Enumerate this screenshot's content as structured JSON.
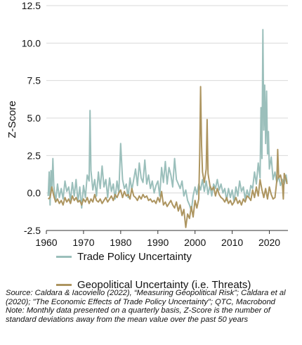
{
  "chart_data": {
    "type": "line",
    "title": "",
    "xlabel": "",
    "ylabel": "Z-Score",
    "xlim": [
      1960,
      2025
    ],
    "ylim": [
      -2.5,
      12.5
    ],
    "xticks": [
      "1960",
      "1970",
      "1980",
      "1990",
      "2000",
      "2010",
      "2020"
    ],
    "yticks": [
      "-2.5",
      "0.0",
      "2.5",
      "5.0",
      "7.5",
      "10.0",
      "12.5"
    ],
    "grid": "horizontal",
    "legend_position": "bottom",
    "series": [
      {
        "name": "Trade Policy Uncertainty",
        "color": "#9bbfbb",
        "points": [
          [
            1960.5,
            -0.2
          ],
          [
            1960.75,
            1.4
          ],
          [
            1961.0,
            -0.8
          ],
          [
            1961.25,
            1.5
          ],
          [
            1961.5,
            0.3
          ],
          [
            1961.75,
            2.3
          ],
          [
            1962.0,
            0.5
          ],
          [
            1962.5,
            -0.6
          ],
          [
            1963.0,
            0.6
          ],
          [
            1963.5,
            -0.3
          ],
          [
            1964.0,
            0.3
          ],
          [
            1964.5,
            -0.4
          ],
          [
            1965.0,
            0.8
          ],
          [
            1965.5,
            0.1
          ],
          [
            1966.0,
            0.4
          ],
          [
            1966.5,
            -0.5
          ],
          [
            1967.0,
            0.7
          ],
          [
            1967.5,
            -0.2
          ],
          [
            1968.0,
            0.9
          ],
          [
            1968.5,
            -0.6
          ],
          [
            1969.0,
            0.4
          ],
          [
            1969.5,
            -1.0
          ],
          [
            1970.0,
            0.5
          ],
          [
            1970.5,
            -0.3
          ],
          [
            1971.0,
            1.2
          ],
          [
            1971.5,
            0.8
          ],
          [
            1971.75,
            5.5
          ],
          [
            1972.0,
            1.5
          ],
          [
            1972.5,
            0.2
          ],
          [
            1973.0,
            0.9
          ],
          [
            1973.5,
            -0.2
          ],
          [
            1974.0,
            1.4
          ],
          [
            1974.5,
            0.3
          ],
          [
            1975.0,
            1.8
          ],
          [
            1975.5,
            0.4
          ],
          [
            1976.0,
            0.9
          ],
          [
            1976.5,
            -0.3
          ],
          [
            1977.0,
            1.0
          ],
          [
            1977.5,
            0.1
          ],
          [
            1978.0,
            0.6
          ],
          [
            1978.5,
            -0.4
          ],
          [
            1979.0,
            0.8
          ],
          [
            1979.5,
            0.0
          ],
          [
            1980.0,
            3.3
          ],
          [
            1980.5,
            0.9
          ],
          [
            1981.0,
            0.3
          ],
          [
            1981.5,
            0.6
          ],
          [
            1982.0,
            -0.3
          ],
          [
            1982.5,
            1.0
          ],
          [
            1983.0,
            0.2
          ],
          [
            1983.5,
            0.9
          ],
          [
            1984.0,
            1.6
          ],
          [
            1984.5,
            0.5
          ],
          [
            1985.0,
            2.0
          ],
          [
            1985.5,
            1.0
          ],
          [
            1986.0,
            0.7
          ],
          [
            1986.5,
            2.2
          ],
          [
            1987.0,
            0.6
          ],
          [
            1987.5,
            1.2
          ],
          [
            1988.0,
            0.3
          ],
          [
            1988.5,
            0.8
          ],
          [
            1989.0,
            0.0
          ],
          [
            1989.5,
            0.5
          ],
          [
            1990.0,
            0.8
          ],
          [
            1990.5,
            -0.2
          ],
          [
            1991.0,
            1.7
          ],
          [
            1991.5,
            0.7
          ],
          [
            1992.0,
            2.1
          ],
          [
            1992.5,
            0.6
          ],
          [
            1993.0,
            1.7
          ],
          [
            1993.5,
            1.2
          ],
          [
            1994.0,
            0.4
          ],
          [
            1994.5,
            2.3
          ],
          [
            1995.0,
            0.9
          ],
          [
            1995.5,
            0.6
          ],
          [
            1996.0,
            0.3
          ],
          [
            1996.5,
            0.8
          ],
          [
            1997.0,
            -0.2
          ],
          [
            1997.5,
            0.2
          ],
          [
            1998.0,
            -0.5
          ],
          [
            1998.5,
            -0.8
          ],
          [
            1999.0,
            -1.2
          ],
          [
            1999.5,
            -0.2
          ],
          [
            2000.0,
            0.4
          ],
          [
            2000.5,
            -0.1
          ],
          [
            2001.0,
            0.6
          ],
          [
            2001.5,
            0.2
          ],
          [
            2002.0,
            0.9
          ],
          [
            2002.5,
            0.1
          ],
          [
            2003.0,
            0.8
          ],
          [
            2003.5,
            -0.1
          ],
          [
            2004.0,
            0.5
          ],
          [
            2004.5,
            -0.2
          ],
          [
            2005.0,
            0.6
          ],
          [
            2005.5,
            0.3
          ],
          [
            2006.0,
            0.9
          ],
          [
            2006.5,
            0.2
          ],
          [
            2007.0,
            0.6
          ],
          [
            2007.5,
            0.0
          ],
          [
            2008.0,
            0.3
          ],
          [
            2008.5,
            -0.5
          ],
          [
            2009.0,
            0.3
          ],
          [
            2009.5,
            -0.3
          ],
          [
            2010.0,
            0.2
          ],
          [
            2010.5,
            -0.6
          ],
          [
            2011.0,
            0.4
          ],
          [
            2011.5,
            -0.2
          ],
          [
            2012.0,
            0.8
          ],
          [
            2012.5,
            0.1
          ],
          [
            2013.0,
            0.4
          ],
          [
            2013.5,
            -0.4
          ],
          [
            2014.0,
            0.2
          ],
          [
            2014.5,
            -0.3
          ],
          [
            2015.0,
            0.5
          ],
          [
            2015.5,
            0.3
          ],
          [
            2016.0,
            1.4
          ],
          [
            2016.5,
            0.6
          ],
          [
            2017.0,
            2.0
          ],
          [
            2017.5,
            1.0
          ],
          [
            2017.75,
            5.7
          ],
          [
            2018.0,
            2.3
          ],
          [
            2018.25,
            10.9
          ],
          [
            2018.5,
            4.2
          ],
          [
            2018.75,
            7.2
          ],
          [
            2019.0,
            3.3
          ],
          [
            2019.25,
            6.8
          ],
          [
            2019.5,
            2.6
          ],
          [
            2019.75,
            4.1
          ],
          [
            2020.0,
            1.6
          ],
          [
            2020.5,
            2.4
          ],
          [
            2021.0,
            0.9
          ],
          [
            2021.5,
            1.4
          ],
          [
            2022.0,
            0.7
          ],
          [
            2022.5,
            1.1
          ],
          [
            2023.0,
            0.5
          ],
          [
            2023.5,
            0.9
          ],
          [
            2024.0,
            0.6
          ],
          [
            2024.5,
            1.2
          ],
          [
            2024.75,
            0.7
          ]
        ]
      },
      {
        "name": "Geopolitical Uncertainty (i.e. Threats)",
        "color": "#ad9560",
        "points": [
          [
            1960.5,
            -0.4
          ],
          [
            1961.0,
            -0.3
          ],
          [
            1961.5,
            0.4
          ],
          [
            1962.0,
            -0.2
          ],
          [
            1962.5,
            -0.6
          ],
          [
            1963.0,
            -0.4
          ],
          [
            1963.5,
            -0.7
          ],
          [
            1964.0,
            -0.5
          ],
          [
            1964.5,
            -0.8
          ],
          [
            1965.0,
            -0.3
          ],
          [
            1965.5,
            -0.6
          ],
          [
            1966.0,
            -0.4
          ],
          [
            1966.5,
            -0.7
          ],
          [
            1967.0,
            -0.2
          ],
          [
            1967.5,
            -0.5
          ],
          [
            1968.0,
            -0.3
          ],
          [
            1968.5,
            -0.6
          ],
          [
            1969.0,
            -0.5
          ],
          [
            1969.5,
            -0.8
          ],
          [
            1970.0,
            -0.4
          ],
          [
            1970.5,
            -0.6
          ],
          [
            1971.0,
            -0.3
          ],
          [
            1971.5,
            -0.7
          ],
          [
            1972.0,
            -0.4
          ],
          [
            1972.5,
            -0.6
          ],
          [
            1973.0,
            -0.1
          ],
          [
            1973.5,
            -0.5
          ],
          [
            1974.0,
            -0.6
          ],
          [
            1974.5,
            -0.4
          ],
          [
            1975.0,
            -0.7
          ],
          [
            1975.5,
            -0.5
          ],
          [
            1976.0,
            -0.3
          ],
          [
            1976.5,
            -0.6
          ],
          [
            1977.0,
            -0.4
          ],
          [
            1977.5,
            -0.2
          ],
          [
            1978.0,
            -0.5
          ],
          [
            1978.5,
            -0.1
          ],
          [
            1979.0,
            -0.3
          ],
          [
            1979.5,
            0.0
          ],
          [
            1980.0,
            0.2
          ],
          [
            1980.5,
            -0.3
          ],
          [
            1981.0,
            0.1
          ],
          [
            1981.5,
            -0.2
          ],
          [
            1982.0,
            -0.1
          ],
          [
            1982.5,
            -0.4
          ],
          [
            1983.0,
            0.3
          ],
          [
            1983.5,
            -0.2
          ],
          [
            1984.0,
            -0.3
          ],
          [
            1984.5,
            -0.5
          ],
          [
            1985.0,
            -0.2
          ],
          [
            1985.5,
            -0.4
          ],
          [
            1986.0,
            -0.1
          ],
          [
            1986.5,
            -0.3
          ],
          [
            1987.0,
            -0.2
          ],
          [
            1987.5,
            -0.5
          ],
          [
            1988.0,
            -0.4
          ],
          [
            1988.5,
            -0.6
          ],
          [
            1989.0,
            -0.5
          ],
          [
            1989.5,
            -0.7
          ],
          [
            1990.0,
            -0.3
          ],
          [
            1990.5,
            -0.6
          ],
          [
            1991.0,
            0.1
          ],
          [
            1991.5,
            -0.8
          ],
          [
            1992.0,
            -0.6
          ],
          [
            1992.5,
            -0.9
          ],
          [
            1993.0,
            -0.7
          ],
          [
            1993.5,
            -0.5
          ],
          [
            1994.0,
            -0.8
          ],
          [
            1994.5,
            -1.0
          ],
          [
            1995.0,
            -0.6
          ],
          [
            1995.5,
            -1.2
          ],
          [
            1996.0,
            -0.8
          ],
          [
            1996.5,
            -1.5
          ],
          [
            1997.0,
            -1.1
          ],
          [
            1997.5,
            -2.3
          ],
          [
            1998.0,
            -1.4
          ],
          [
            1998.5,
            -1.7
          ],
          [
            1999.0,
            -0.9
          ],
          [
            1999.5,
            -1.6
          ],
          [
            2000.0,
            -0.5
          ],
          [
            2000.5,
            -1.0
          ],
          [
            2001.0,
            -0.4
          ],
          [
            2001.25,
            2.5
          ],
          [
            2001.5,
            7.1
          ],
          [
            2001.75,
            3.2
          ],
          [
            2002.0,
            1.4
          ],
          [
            2002.5,
            0.7
          ],
          [
            2003.0,
            1.6
          ],
          [
            2003.25,
            4.9
          ],
          [
            2003.5,
            1.3
          ],
          [
            2004.0,
            0.5
          ],
          [
            2004.5,
            0.2
          ],
          [
            2005.0,
            0.4
          ],
          [
            2005.5,
            -0.2
          ],
          [
            2006.0,
            0.3
          ],
          [
            2006.5,
            -0.1
          ],
          [
            2007.0,
            -0.3
          ],
          [
            2007.5,
            -0.4
          ],
          [
            2008.0,
            -0.6
          ],
          [
            2008.5,
            -0.3
          ],
          [
            2009.0,
            -0.7
          ],
          [
            2009.5,
            -0.5
          ],
          [
            2010.0,
            -0.8
          ],
          [
            2010.5,
            -0.6
          ],
          [
            2011.0,
            -0.3
          ],
          [
            2011.5,
            -0.7
          ],
          [
            2012.0,
            -0.5
          ],
          [
            2012.5,
            -0.8
          ],
          [
            2013.0,
            -0.4
          ],
          [
            2013.5,
            -0.6
          ],
          [
            2014.0,
            -0.2
          ],
          [
            2014.5,
            -0.3
          ],
          [
            2015.0,
            -0.5
          ],
          [
            2015.5,
            0.2
          ],
          [
            2016.0,
            -0.3
          ],
          [
            2016.5,
            0.4
          ],
          [
            2017.0,
            -0.2
          ],
          [
            2017.5,
            0.9
          ],
          [
            2018.0,
            0.2
          ],
          [
            2018.5,
            -0.3
          ],
          [
            2019.0,
            0.3
          ],
          [
            2019.5,
            -0.4
          ],
          [
            2020.0,
            0.4
          ],
          [
            2020.5,
            -0.1
          ],
          [
            2021.0,
            -0.4
          ],
          [
            2021.5,
            -0.3
          ],
          [
            2022.0,
            0.8
          ],
          [
            2022.25,
            2.9
          ],
          [
            2022.5,
            1.0
          ],
          [
            2023.0,
            1.2
          ],
          [
            2023.5,
            0.6
          ],
          [
            2023.75,
            -0.4
          ],
          [
            2024.0,
            1.3
          ],
          [
            2024.5,
            0.9
          ],
          [
            2024.75,
            0.6
          ]
        ]
      }
    ]
  },
  "legend": {
    "items": [
      {
        "label": "Trade Policy Uncertainty",
        "color": "#9bbfbb"
      },
      {
        "label": "Geopolitical Uncertainty (i.e. Threats)",
        "color": "#ad9560"
      }
    ]
  },
  "source_note": {
    "source": "Source: Caldara & Iacoviello (2022), “Measuring Geopolitical Risk”; Caldara et al (2020); \"The Economic Effects of Trade Policy Uncertainty\"; QTC, Macrobond",
    "note": "Note: Monthly data presented on a quarterly basis, Z-Score is the number of standard deviations away from the mean value over the past 50 years"
  }
}
